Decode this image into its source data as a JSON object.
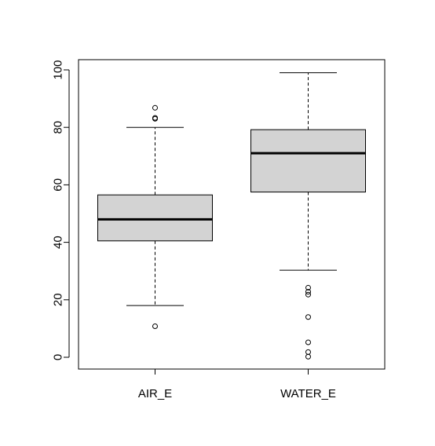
{
  "chart_data": {
    "type": "boxplot",
    "title": "",
    "xlabel": "",
    "ylabel": "",
    "ylim": [
      -4,
      103
    ],
    "yticks": [
      0,
      20,
      40,
      60,
      80,
      100
    ],
    "ytick_labels": [
      "0",
      "20",
      "40",
      "60",
      "80",
      "100"
    ],
    "grid": false,
    "legend": "none",
    "categories": [
      "AIR_E",
      "WATER_E"
    ],
    "boxes": [
      {
        "label": "AIR_E",
        "whisker_low": 18,
        "q1": 40.5,
        "median": 48,
        "q3": 56.5,
        "whisker_high": 80,
        "outliers": [
          10.8,
          83,
          83.3,
          86.8
        ]
      },
      {
        "label": "WATER_E",
        "whisker_low": 30.3,
        "q1": 57.5,
        "median": 71,
        "q3": 79.2,
        "whisker_high": 99,
        "outliers": [
          0.2,
          1.8,
          5.2,
          14,
          21.8,
          22.8,
          24.2
        ]
      }
    ],
    "colors": {
      "box_fill": "#d3d3d3",
      "stroke": "#000000",
      "background": "#ffffff"
    }
  }
}
